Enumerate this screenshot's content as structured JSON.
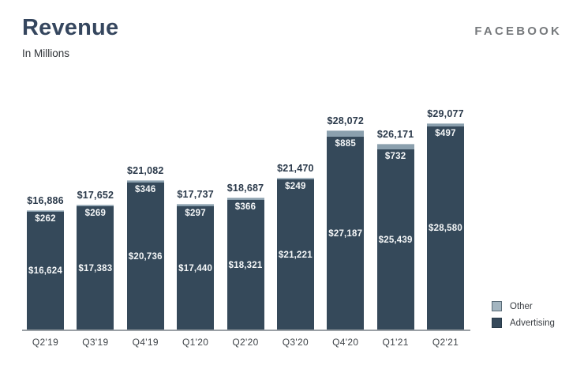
{
  "header": {
    "title": "Revenue",
    "subtitle": "In Millions",
    "logo": "FACEBOOK"
  },
  "legend": [
    {
      "label": "Other",
      "color": "#a3b5c0"
    },
    {
      "label": "Advertising",
      "color": "#35495a"
    }
  ],
  "colors": {
    "advertising": "#35495a",
    "other": "#8ba0ae",
    "other_highlight": "#b6c4cc",
    "total_label": "#2b3a4b",
    "inside_label": "#f5f7f8",
    "axis": "#9aa0a5"
  },
  "chart_data": {
    "type": "bar",
    "stacked": true,
    "title": "Revenue",
    "subtitle": "In Millions",
    "unit": "USD millions",
    "categories": [
      "Q2'19",
      "Q3'19",
      "Q4'19",
      "Q1'20",
      "Q2'20",
      "Q3'20",
      "Q4'20",
      "Q1'21",
      "Q2'21"
    ],
    "series": [
      {
        "name": "Advertising",
        "values": [
          16624,
          17383,
          20736,
          17440,
          18321,
          21221,
          27187,
          25439,
          28580
        ],
        "labels": [
          "$16,624",
          "$17,383",
          "$20,736",
          "$17,440",
          "$18,321",
          "$21,221",
          "$27,187",
          "$25,439",
          "$28,580"
        ]
      },
      {
        "name": "Other",
        "values": [
          262,
          269,
          346,
          297,
          366,
          249,
          885,
          732,
          497
        ],
        "labels": [
          "$262",
          "$269",
          "$346",
          "$297",
          "$366",
          "$249",
          "$885",
          "$732",
          "$497"
        ]
      }
    ],
    "totals": [
      16886,
      17652,
      21082,
      17737,
      18687,
      21470,
      28072,
      26171,
      29077
    ],
    "total_labels": [
      "$16,886",
      "$17,652",
      "$21,082",
      "$17,737",
      "$18,687",
      "$21,470",
      "$28,072",
      "$26,171",
      "$29,077"
    ],
    "ylim": [
      0,
      29077
    ],
    "grid": false,
    "legend_position": "bottom-right"
  }
}
